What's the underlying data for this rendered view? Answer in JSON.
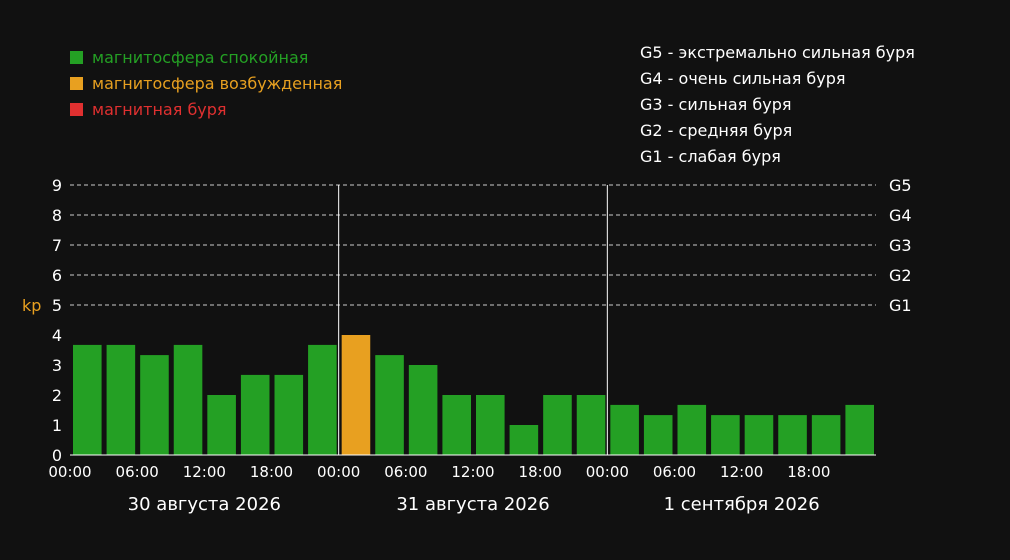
{
  "legend": [
    {
      "label": "магнитосфера спокойная",
      "color": "#24a024"
    },
    {
      "label": "магнитосфера возбужденная",
      "color": "#e8a020"
    },
    {
      "label": "магнитная буря",
      "color": "#e03030"
    }
  ],
  "storm_scale": [
    {
      "level": "G5",
      "desc": "экстремально сильная буря"
    },
    {
      "level": "G4",
      "desc": "очень сильная буря"
    },
    {
      "level": "G3",
      "desc": "сильная буря"
    },
    {
      "level": "G2",
      "desc": "средняя буря"
    },
    {
      "level": "G1",
      "desc": "слабая буря"
    }
  ],
  "chart_data": {
    "type": "bar",
    "ylabel": "kp",
    "ylim": [
      0,
      9
    ],
    "yticks": [
      "0",
      "1",
      "2",
      "3",
      "4",
      "5",
      "6",
      "7",
      "8",
      "9"
    ],
    "right_axis_labels": [
      {
        "value": 5,
        "label": "G1"
      },
      {
        "value": 6,
        "label": "G2"
      },
      {
        "value": 7,
        "label": "G3"
      },
      {
        "value": 8,
        "label": "G4"
      },
      {
        "value": 9,
        "label": "G5"
      }
    ],
    "grid": "dashed at 5-9",
    "time_ticks": [
      "00:00",
      "06:00",
      "12:00",
      "18:00",
      "00:00",
      "06:00",
      "12:00",
      "18:00",
      "00:00",
      "06:00",
      "12:00",
      "18:00"
    ],
    "days": [
      "30 августа 2026",
      "31 августа 2026",
      "1 сентября 2026"
    ],
    "values": [
      3.67,
      3.67,
      3.33,
      3.67,
      2.0,
      2.67,
      2.67,
      3.67,
      4.0,
      3.33,
      3.0,
      2.0,
      2.0,
      1.0,
      2.0,
      2.0,
      1.67,
      1.33,
      1.67,
      1.33,
      1.33,
      1.33,
      1.33,
      1.67
    ],
    "colors": {
      "quiet": "#24a024",
      "active": "#e8a020",
      "storm": "#e03030",
      "ylabel": "#e8a020",
      "text": "#ffffff"
    }
  }
}
